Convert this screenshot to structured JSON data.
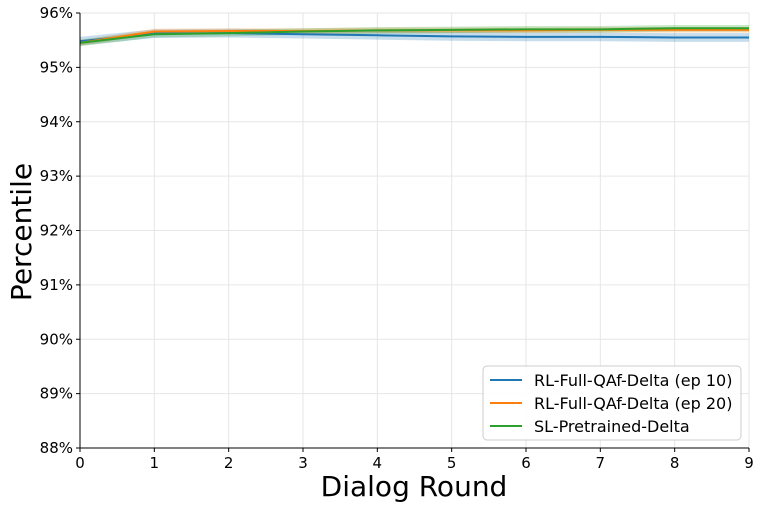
{
  "chart_data": {
    "type": "line",
    "title": "",
    "xlabel": "Dialog Round",
    "ylabel": "Percentile",
    "x": [
      0,
      1,
      2,
      3,
      4,
      5,
      6,
      7,
      8,
      9
    ],
    "xlim": [
      0,
      9
    ],
    "ylim": [
      88,
      96
    ],
    "xticks": [
      "0",
      "1",
      "2",
      "3",
      "4",
      "5",
      "6",
      "7",
      "8",
      "9"
    ],
    "yticks": [
      "88%",
      "89%",
      "90%",
      "91%",
      "92%",
      "93%",
      "94%",
      "95%",
      "96%"
    ],
    "grid": true,
    "legend_position": "bottom-right",
    "series": [
      {
        "name": "RL-Full-QAf-Delta (ep 10)",
        "color": "#1f77b4",
        "values": [
          95.48,
          95.62,
          95.63,
          95.61,
          95.59,
          95.57,
          95.56,
          95.56,
          95.55,
          95.55
        ],
        "band": 0.08
      },
      {
        "name": "RL-Full-QAf-Delta (ep 20)",
        "color": "#ff7f0e",
        "values": [
          95.45,
          95.66,
          95.67,
          95.67,
          95.68,
          95.68,
          95.68,
          95.69,
          95.69,
          95.69
        ],
        "band": 0.05
      },
      {
        "name": "SL-Pretrained-Delta",
        "color": "#2ca02c",
        "values": [
          95.45,
          95.61,
          95.63,
          95.66,
          95.68,
          95.69,
          95.7,
          95.7,
          95.72,
          95.72
        ],
        "band": 0.06
      }
    ]
  }
}
